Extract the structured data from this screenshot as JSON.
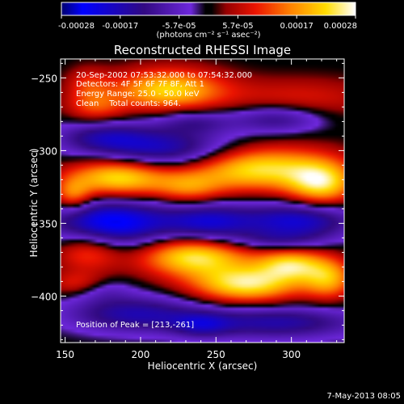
{
  "chart_data": {
    "type": "heatmap",
    "title": "Reconstructed RHESSI Image",
    "xlabel": "Heliocentric X (arcsec)",
    "ylabel": "Heliocentric Y (arcsec)",
    "xlim": [
      147,
      335
    ],
    "ylim": [
      -432,
      -237
    ],
    "x_ticks": [
      150,
      200,
      250,
      300
    ],
    "y_ticks": [
      -250,
      -300,
      -350,
      -400
    ],
    "colorbar": {
      "ticks": [
        "-0.00028",
        "-0.00017",
        "-5.7e-05",
        "5.7e-05",
        "0.00017",
        "0.00028"
      ],
      "unit_label": "(photons cm⁻² s⁻¹ asec⁻²)",
      "range": [
        -0.00028,
        0.00028
      ]
    },
    "annotations": {
      "time": "20-Sep-2002 07:53:32.000 to 07:54:32.000",
      "detectors": "Detectors: 4F 5F 6F 7F 8F, Att 1",
      "energy": "Energy Range: 25.0 - 50.0 keV",
      "clean": "Clean    Total counts: 964.",
      "peak": "Position of Peak = [213,-261]"
    },
    "blobs": [
      {
        "x": 305,
        "y": -264,
        "sx": 38,
        "sy": 10,
        "v": 8e-05
      },
      {
        "x": 218,
        "y": -258,
        "sx": 26,
        "sy": 10,
        "v": 0.00022
      },
      {
        "x": 170,
        "y": -270,
        "sx": 14,
        "sy": 8,
        "v": 0.00011
      },
      {
        "x": 165,
        "y": -254,
        "sx": 10,
        "sy": 8,
        "v": 8e-05
      },
      {
        "x": 215,
        "y": -300,
        "sx": 35,
        "sy": 10,
        "v": -0.0002
      },
      {
        "x": 175,
        "y": -290,
        "sx": 22,
        "sy": 8,
        "v": -0.00012
      },
      {
        "x": 290,
        "y": -278,
        "sx": 22,
        "sy": 7,
        "v": -0.00013
      },
      {
        "x": 235,
        "y": -280,
        "sx": 18,
        "sy": 6,
        "v": -0.0001
      },
      {
        "x": 185,
        "y": -318,
        "sx": 24,
        "sy": 10,
        "v": 0.00025
      },
      {
        "x": 275,
        "y": -312,
        "sx": 34,
        "sy": 11,
        "v": 0.00025
      },
      {
        "x": 320,
        "y": -323,
        "sx": 16,
        "sy": 11,
        "v": 0.00021
      },
      {
        "x": 232,
        "y": -326,
        "sx": 16,
        "sy": 8,
        "v": 0.00012
      },
      {
        "x": 155,
        "y": -331,
        "sx": 9,
        "sy": 8,
        "v": 0.00014
      },
      {
        "x": 180,
        "y": -350,
        "sx": 28,
        "sy": 12,
        "v": -0.00026
      },
      {
        "x": 245,
        "y": -350,
        "sx": 22,
        "sy": 10,
        "v": -0.00019
      },
      {
        "x": 305,
        "y": -348,
        "sx": 26,
        "sy": 9,
        "v": -0.0002
      },
      {
        "x": 290,
        "y": -362,
        "sx": 22,
        "sy": 5,
        "v": -9e-05
      },
      {
        "x": 235,
        "y": -372,
        "sx": 26,
        "sy": 10,
        "v": 0.00025
      },
      {
        "x": 300,
        "y": -378,
        "sx": 16,
        "sy": 8,
        "v": 0.0002
      },
      {
        "x": 270,
        "y": -392,
        "sx": 26,
        "sy": 9,
        "v": 0.00024
      },
      {
        "x": 325,
        "y": -388,
        "sx": 12,
        "sy": 10,
        "v": 0.00017
      },
      {
        "x": 165,
        "y": -368,
        "sx": 16,
        "sy": 10,
        "v": 0.00014
      },
      {
        "x": 160,
        "y": -392,
        "sx": 14,
        "sy": 6,
        "v": 0.00011
      },
      {
        "x": 195,
        "y": -412,
        "sx": 32,
        "sy": 9,
        "v": -0.00016
      },
      {
        "x": 290,
        "y": -418,
        "sx": 40,
        "sy": 8,
        "v": -0.00016
      },
      {
        "x": 240,
        "y": -420,
        "sx": 14,
        "sy": 6,
        "v": -0.0001
      },
      {
        "x": 172,
        "y": -395,
        "sx": 14,
        "sy": 6,
        "v": -8e-05
      }
    ]
  },
  "footer": {
    "date": "7-May-2013 08:05"
  }
}
